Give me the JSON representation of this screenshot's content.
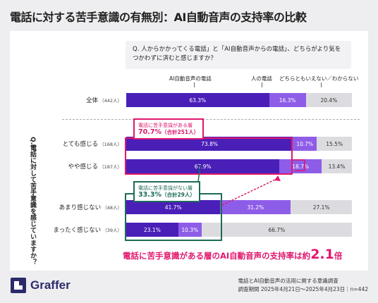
{
  "title": "電話に対する苦手意識の有無別：AI自動音声の支持率の比較",
  "question": "Q. 人からかかってくる電話」と「AI自動音声からの電話」、どちらがより気をつかわずに済むと感じますか？",
  "vertical_question": "Q.電話に対して苦手意識を感じていますか？",
  "callout_high": {
    "line1": "電話に苦手意識がある層",
    "pct": "70.7%",
    "total": "（合計251人）"
  },
  "callout_low": {
    "line1": "電話に苦手意識がない層",
    "pct": "33.3%",
    "total": "（合計29人）"
  },
  "conclusion": {
    "prefix": "電話に苦手意識がある層のAI自動音声の支持率は約",
    "num": "2.1",
    "suffix": "倍"
  },
  "logo": {
    "name": "Graffer"
  },
  "footer": {
    "line1": "電話とAI自動音声の活用に関する意識調査",
    "line2": "調査期間 2025年4月21日〜2025年4月23日｜n=442"
  },
  "colors": {
    "ai": "#4a1fb8",
    "human": "#8e5de8",
    "neither": "#dcdce0",
    "pink": "#e0176e",
    "green": "#1d6b57"
  },
  "chart_data": {
    "type": "bar",
    "orientation": "horizontal",
    "stacked": true,
    "title": "電話に対する苦手意識の有無別：AI自動音声の支持率の比較",
    "series": [
      {
        "name": "AI自動音声の電話",
        "values": [
          63.3,
          73.8,
          67.9,
          41.7,
          23.1
        ]
      },
      {
        "name": "人の電話",
        "values": [
          16.3,
          10.7,
          18.7,
          31.2,
          10.3
        ]
      },
      {
        "name": "どちらともいえない／わからない",
        "values": [
          20.4,
          15.5,
          13.4,
          27.1,
          66.7
        ]
      }
    ],
    "categories": [
      {
        "label": "全体",
        "n": "（442人）"
      },
      {
        "label": "とても感じる",
        "n": "（168人）"
      },
      {
        "label": "やや感じる",
        "n": "（187人）"
      },
      {
        "label": "あまり感じない",
        "n": "（48人）"
      },
      {
        "label": "まったく感じない",
        "n": "（39人）"
      }
    ],
    "xlim": [
      0,
      100
    ]
  }
}
